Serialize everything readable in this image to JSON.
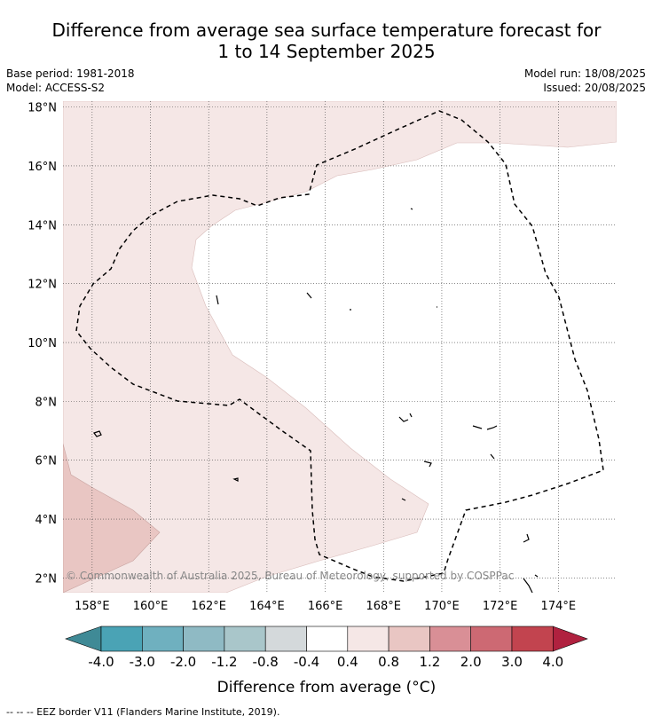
{
  "title_line1": "Difference from average sea surface temperature forecast for",
  "title_line2": "1 to 14 September 2025",
  "base_period": "Base period: 1981-2018",
  "model": "Model: ACCESS-S2",
  "model_run": "Model run: 18/08/2025",
  "issued": "Issued: 20/08/2025",
  "copyright": "© Commonwealth of Australia 2025, Bureau of Meteorology, supported by COSPPac",
  "footnote": "--  --  -- EEZ border V11 (Flanders Marine Institute, 2019).",
  "map": {
    "lon_range": [
      157,
      176
    ],
    "lat_range": [
      1.5,
      18.2
    ],
    "lon_ticks": [
      "158°E",
      "160°E",
      "162°E",
      "164°E",
      "166°E",
      "168°E",
      "170°E",
      "172°E",
      "174°E"
    ],
    "lat_ticks": [
      "2°N",
      "4°N",
      "6°N",
      "8°N",
      "10°N",
      "12°N",
      "14°N",
      "16°N",
      "18°N"
    ],
    "grid": true
  },
  "colorbar": {
    "title": "Difference from average (°C)",
    "labels": [
      "-4.0",
      "-3.0",
      "-2.0",
      "-1.2",
      "-0.8",
      "-0.4",
      "0.4",
      "0.8",
      "1.2",
      "2.0",
      "3.0",
      "4.0"
    ],
    "colors": [
      "#3f8a96",
      "#4aa3b5",
      "#6fb0bf",
      "#8fbac4",
      "#a9c6ca",
      "#d4d9db",
      "#ffffff",
      "#f5e7e6",
      "#e9c6c3",
      "#d98f96",
      "#cd6973",
      "#c2444f",
      "#b0213f"
    ]
  }
}
